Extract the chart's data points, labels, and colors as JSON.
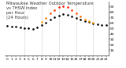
{
  "title_line1": "Milwaukee Weather Outdoor Temperature",
  "title_line2": "vs THSW Index",
  "title_line3": "per Hour",
  "title_line4": "(24 Hours)",
  "hours": [
    0,
    1,
    2,
    3,
    4,
    5,
    6,
    7,
    8,
    9,
    10,
    11,
    12,
    13,
    14,
    15,
    16,
    17,
    18,
    19,
    20,
    21,
    22,
    23
  ],
  "temp": [
    55,
    54,
    53,
    52,
    51,
    51,
    50,
    52,
    56,
    61,
    66,
    71,
    74,
    76,
    75,
    73,
    70,
    67,
    64,
    62,
    60,
    58,
    57,
    56
  ],
  "thsw": [
    null,
    null,
    null,
    null,
    null,
    null,
    null,
    null,
    62,
    70,
    78,
    84,
    89,
    91,
    89,
    84,
    78,
    72,
    66,
    63,
    61,
    null,
    null,
    null
  ],
  "temp_color": "#000000",
  "bg_color": "#ffffff",
  "grid_color": "#bbbbbb",
  "ylim": [
    0,
    100
  ],
  "ytick_vals": [
    10,
    20,
    30,
    40,
    50,
    60,
    70,
    80,
    90
  ],
  "ytick_labels": [
    "10",
    "20",
    "30",
    "40",
    "50",
    "60",
    "70",
    "80",
    "90"
  ],
  "vgrid_hours": [
    4,
    8,
    12,
    16,
    20
  ],
  "marker_size": 1.8,
  "title_fontsize": 3.8,
  "tick_fontsize": 3.2
}
